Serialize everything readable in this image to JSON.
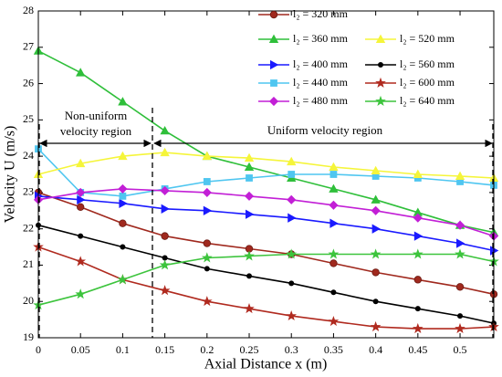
{
  "chart_data": {
    "type": "line",
    "xlabel": "Axial Distance x (m)",
    "ylabel": "Velocity U (m/s)",
    "xlim": [
      0,
      0.54
    ],
    "ylim": [
      19,
      28
    ],
    "xticks": [
      0,
      0.05,
      0.1,
      0.15,
      0.2,
      0.25,
      0.3,
      0.35,
      0.4,
      0.45,
      0.5
    ],
    "yticks": [
      19,
      20,
      21,
      22,
      23,
      24,
      25,
      26,
      27,
      28
    ],
    "x": [
      0,
      0.05,
      0.1,
      0.15,
      0.2,
      0.25,
      0.3,
      0.35,
      0.4,
      0.45,
      0.5,
      0.54
    ],
    "series": [
      {
        "name": "l₂ = 320 mm",
        "color": "#a0291e",
        "marker": "circle",
        "values": [
          23.0,
          22.6,
          22.15,
          21.8,
          21.6,
          21.45,
          21.3,
          21.05,
          20.8,
          20.6,
          20.4,
          20.2
        ]
      },
      {
        "name": "l₂ = 360 mm",
        "color": "#2fbf3a",
        "marker": "triangle",
        "values": [
          26.9,
          26.3,
          25.5,
          24.7,
          24.0,
          23.7,
          23.4,
          23.1,
          22.8,
          22.45,
          22.1,
          21.9
        ]
      },
      {
        "name": "l₂ = 400 mm",
        "color": "#1a1aff",
        "marker": "triangle-right",
        "values": [
          22.9,
          22.8,
          22.7,
          22.55,
          22.5,
          22.4,
          22.3,
          22.15,
          22.0,
          21.8,
          21.6,
          21.4
        ]
      },
      {
        "name": "l₂ = 440 mm",
        "color": "#4fc6f0",
        "marker": "square",
        "values": [
          24.2,
          23.0,
          22.9,
          23.1,
          23.3,
          23.4,
          23.5,
          23.5,
          23.45,
          23.4,
          23.3,
          23.2
        ]
      },
      {
        "name": "l₂ = 480 mm",
        "color": "#c21fd6",
        "marker": "diamond",
        "values": [
          22.8,
          23.0,
          23.1,
          23.05,
          23.0,
          22.9,
          22.8,
          22.65,
          22.5,
          22.3,
          22.1,
          21.8
        ]
      },
      {
        "name": "l₂ = 520 mm",
        "color": "#f5f53a",
        "marker": "triangle",
        "values": [
          23.5,
          23.8,
          24.0,
          24.1,
          24.0,
          23.95,
          23.85,
          23.7,
          23.6,
          23.5,
          23.45,
          23.4
        ]
      },
      {
        "name": "l₂ = 560 mm",
        "color": "#000000",
        "marker": "dot",
        "values": [
          22.1,
          21.8,
          21.5,
          21.2,
          20.9,
          20.7,
          20.5,
          20.25,
          20.0,
          19.8,
          19.6,
          19.4
        ]
      },
      {
        "name": "l₂ = 600 mm",
        "color": "#b02a1f",
        "marker": "star",
        "values": [
          21.5,
          21.1,
          20.6,
          20.3,
          20.0,
          19.8,
          19.6,
          19.45,
          19.3,
          19.25,
          19.25,
          19.3
        ]
      },
      {
        "name": "l₂ = 640 mm",
        "color": "#3dc43d",
        "marker": "star",
        "values": [
          19.9,
          20.2,
          20.6,
          21.0,
          21.2,
          21.25,
          21.3,
          21.3,
          21.3,
          21.3,
          21.3,
          21.1
        ]
      }
    ],
    "annotations": [
      "Non-uniform",
      "velocity region",
      "Uniform velocity region"
    ]
  }
}
